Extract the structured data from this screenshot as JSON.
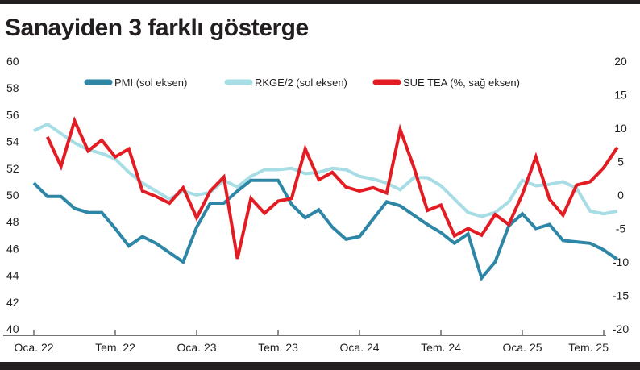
{
  "title": "Sanayiden 3 farklı gösterge",
  "chart_data": {
    "type": "line",
    "title": "Sanayiden 3 farklı gösterge",
    "x_tick_labels": [
      "Oca. 22",
      "Tem. 22",
      "Oca. 23",
      "Tem. 23",
      "Oca. 24",
      "Tem. 24",
      "Oca. 25",
      "Tem. 25"
    ],
    "x_start": "2022-01",
    "x_end": "2025-07",
    "y_left": {
      "ticks": [
        60,
        58,
        56,
        54,
        52,
        50,
        48,
        46,
        44,
        42,
        40
      ],
      "range": [
        40,
        60
      ]
    },
    "y_right": {
      "ticks": [
        20,
        15,
        10,
        5,
        0,
        -5,
        -10,
        -15,
        -20
      ],
      "range": [
        -20,
        20
      ]
    },
    "grid": false,
    "legend_position": "top",
    "series": [
      {
        "name": "PMI (sol eksen)",
        "axis": "left",
        "color": "#2e86a6",
        "points": [
          [
            "2022-01",
            50.9
          ],
          [
            "2022-02",
            49.9
          ],
          [
            "2022-03",
            49.9
          ],
          [
            "2022-04",
            49.0
          ],
          [
            "2022-05",
            48.7
          ],
          [
            "2022-06",
            48.7
          ],
          [
            "2022-07",
            47.5
          ],
          [
            "2022-08",
            46.2
          ],
          [
            "2022-09",
            46.9
          ],
          [
            "2022-10",
            46.4
          ],
          [
            "2022-11",
            45.7
          ],
          [
            "2022-12",
            45.0
          ],
          [
            "2023-01",
            47.6
          ],
          [
            "2023-02",
            49.4
          ],
          [
            "2023-03",
            49.4
          ],
          [
            "2023-04",
            50.3
          ],
          [
            "2023-05",
            51.1
          ],
          [
            "2023-06",
            51.1
          ],
          [
            "2023-07",
            51.1
          ],
          [
            "2023-08",
            49.3
          ],
          [
            "2023-09",
            48.3
          ],
          [
            "2023-10",
            48.9
          ],
          [
            "2023-11",
            47.6
          ],
          [
            "2023-12",
            46.7
          ],
          [
            "2024-01",
            46.9
          ],
          [
            "2024-02",
            48.2
          ],
          [
            "2024-03",
            49.5
          ],
          [
            "2024-04",
            49.2
          ],
          [
            "2024-05",
            48.5
          ],
          [
            "2024-06",
            47.8
          ],
          [
            "2024-07",
            47.2
          ],
          [
            "2024-08",
            46.4
          ],
          [
            "2024-09",
            47.1
          ],
          [
            "2024-10",
            43.8
          ],
          [
            "2024-11",
            45.0
          ],
          [
            "2024-12",
            47.7
          ],
          [
            "2025-01",
            48.6
          ],
          [
            "2025-02",
            47.5
          ],
          [
            "2025-03",
            47.8
          ],
          [
            "2025-04",
            46.6
          ],
          [
            "2025-05",
            46.5
          ],
          [
            "2025-06",
            46.4
          ],
          [
            "2025-07",
            45.9
          ],
          [
            "2025-08",
            45.2
          ]
        ]
      },
      {
        "name": "RKGE/2 (sol eksen)",
        "axis": "left",
        "color": "#a7dde4",
        "points": [
          [
            "2022-01",
            54.8
          ],
          [
            "2022-02",
            55.3
          ],
          [
            "2022-03",
            54.6
          ],
          [
            "2022-04",
            53.9
          ],
          [
            "2022-05",
            53.4
          ],
          [
            "2022-06",
            53.1
          ],
          [
            "2022-07",
            52.7
          ],
          [
            "2022-08",
            51.7
          ],
          [
            "2022-09",
            50.9
          ],
          [
            "2022-10",
            50.3
          ],
          [
            "2022-11",
            49.7
          ],
          [
            "2022-12",
            50.3
          ],
          [
            "2023-01",
            50.0
          ],
          [
            "2023-02",
            50.2
          ],
          [
            "2023-03",
            51.1
          ],
          [
            "2023-04",
            50.6
          ],
          [
            "2023-05",
            51.4
          ],
          [
            "2023-06",
            51.9
          ],
          [
            "2023-07",
            51.9
          ],
          [
            "2023-08",
            52.0
          ],
          [
            "2023-09",
            51.6
          ],
          [
            "2023-10",
            51.7
          ],
          [
            "2023-11",
            52.0
          ],
          [
            "2023-12",
            51.9
          ],
          [
            "2024-01",
            51.4
          ],
          [
            "2024-02",
            51.2
          ],
          [
            "2024-03",
            50.9
          ],
          [
            "2024-04",
            50.4
          ],
          [
            "2024-05",
            51.3
          ],
          [
            "2024-06",
            51.3
          ],
          [
            "2024-07",
            50.7
          ],
          [
            "2024-08",
            49.7
          ],
          [
            "2024-09",
            48.7
          ],
          [
            "2024-10",
            48.4
          ],
          [
            "2024-11",
            48.7
          ],
          [
            "2024-12",
            49.5
          ],
          [
            "2025-01",
            51.1
          ],
          [
            "2025-02",
            50.7
          ],
          [
            "2025-03",
            50.8
          ],
          [
            "2025-04",
            51.0
          ],
          [
            "2025-05",
            50.5
          ],
          [
            "2025-06",
            48.8
          ],
          [
            "2025-07",
            48.6
          ],
          [
            "2025-08",
            48.8
          ]
        ]
      },
      {
        "name": "SUE TEA (%, sağ eksen)",
        "axis": "right",
        "color": "#e31b23",
        "points": [
          [
            "2022-02",
            8.7
          ],
          [
            "2022-03",
            4.3
          ],
          [
            "2022-04",
            11.1
          ],
          [
            "2022-05",
            6.6
          ],
          [
            "2022-06",
            8.2
          ],
          [
            "2022-07",
            5.7
          ],
          [
            "2022-08",
            6.9
          ],
          [
            "2022-09",
            0.6
          ],
          [
            "2022-10",
            -0.2
          ],
          [
            "2022-11",
            -1.2
          ],
          [
            "2022-12",
            1.1
          ],
          [
            "2023-01",
            -3.4
          ],
          [
            "2023-02",
            0.6
          ],
          [
            "2023-03",
            2.7
          ],
          [
            "2023-04",
            -9.5
          ],
          [
            "2023-05",
            -0.5
          ],
          [
            "2023-06",
            -2.7
          ],
          [
            "2023-07",
            -0.9
          ],
          [
            "2023-08",
            -0.5
          ],
          [
            "2023-09",
            6.9
          ],
          [
            "2023-10",
            2.3
          ],
          [
            "2023-11",
            3.4
          ],
          [
            "2023-12",
            1.2
          ],
          [
            "2024-01",
            0.6
          ],
          [
            "2024-02",
            1.1
          ],
          [
            "2024-03",
            0.3
          ],
          [
            "2024-04",
            9.8
          ],
          [
            "2024-05",
            4.2
          ],
          [
            "2024-06",
            -2.3
          ],
          [
            "2024-07",
            -1.5
          ],
          [
            "2024-08",
            -6.1
          ],
          [
            "2024-09",
            -5.0
          ],
          [
            "2024-10",
            -6.0
          ],
          [
            "2024-11",
            -2.9
          ],
          [
            "2024-12",
            -4.4
          ],
          [
            "2025-01",
            0.1
          ],
          [
            "2025-02",
            5.7
          ],
          [
            "2025-03",
            -0.6
          ],
          [
            "2025-04",
            -3.0
          ],
          [
            "2025-05",
            1.5
          ],
          [
            "2025-06",
            2.0
          ],
          [
            "2025-07",
            4.1
          ],
          [
            "2025-08",
            7.1
          ]
        ]
      }
    ]
  }
}
